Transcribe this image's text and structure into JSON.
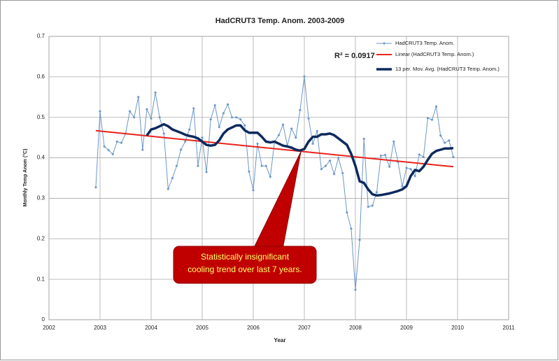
{
  "chart_data": {
    "type": "line",
    "title": "HadCRUT3 Temp. Anom. 2003-2009",
    "xlabel": "Year",
    "ylabel": "Monthly Temp Anom (°C)",
    "xlim": [
      2002,
      2011
    ],
    "xticks": [
      2002,
      2003,
      2004,
      2005,
      2006,
      2007,
      2008,
      2009,
      2010,
      2011
    ],
    "ylim": [
      0,
      0.7
    ],
    "yticks": [
      0,
      0.1,
      0.2,
      0.3,
      0.4,
      0.5,
      0.6,
      0.7
    ],
    "grid": true,
    "legend": "upper right",
    "x": [
      2002.917,
      2003.0,
      2003.083,
      2003.167,
      2003.25,
      2003.333,
      2003.417,
      2003.5,
      2003.583,
      2003.667,
      2003.75,
      2003.833,
      2003.917,
      2004.0,
      2004.083,
      2004.167,
      2004.25,
      2004.333,
      2004.417,
      2004.5,
      2004.583,
      2004.667,
      2004.75,
      2004.833,
      2004.917,
      2005.0,
      2005.083,
      2005.167,
      2005.25,
      2005.333,
      2005.417,
      2005.5,
      2005.583,
      2005.667,
      2005.75,
      2005.833,
      2005.917,
      2006.0,
      2006.083,
      2006.167,
      2006.25,
      2006.333,
      2006.417,
      2006.5,
      2006.583,
      2006.667,
      2006.75,
      2006.833,
      2006.917,
      2007.0,
      2007.083,
      2007.167,
      2007.25,
      2007.333,
      2007.417,
      2007.5,
      2007.583,
      2007.667,
      2007.75,
      2007.833,
      2007.917,
      2008.0,
      2008.083,
      2008.167,
      2008.25,
      2008.333,
      2008.417,
      2008.5,
      2008.583,
      2008.667,
      2008.75,
      2008.833,
      2008.917,
      2009.0,
      2009.083,
      2009.167,
      2009.25,
      2009.333,
      2009.417,
      2009.5,
      2009.583,
      2009.667,
      2009.75,
      2009.833,
      2009.917
    ],
    "series": [
      {
        "name": "HadCRUT3 Temp. Anom.",
        "color": "#6c97c8",
        "marker": true,
        "width": 1,
        "values": [
          0.327,
          0.515,
          0.428,
          0.419,
          0.409,
          0.44,
          0.437,
          0.46,
          0.515,
          0.5,
          0.55,
          0.42,
          0.52,
          0.497,
          0.561,
          0.5,
          0.46,
          0.323,
          0.35,
          0.38,
          0.42,
          0.44,
          0.47,
          0.522,
          0.38,
          0.45,
          0.365,
          0.495,
          0.53,
          0.476,
          0.51,
          0.532,
          0.5,
          0.5,
          0.495,
          0.48,
          0.366,
          0.32,
          0.435,
          0.38,
          0.38,
          0.353,
          0.44,
          0.456,
          0.482,
          0.43,
          0.472,
          0.45,
          0.518,
          0.601,
          0.497,
          0.435,
          0.466,
          0.372,
          0.38,
          0.393,
          0.36,
          0.4,
          0.362,
          0.265,
          0.225,
          0.074,
          0.197,
          0.447,
          0.279,
          0.282,
          0.315,
          0.405,
          0.407,
          0.378,
          0.44,
          0.39,
          0.33,
          0.375,
          0.372,
          0.355,
          0.408,
          0.402,
          0.498,
          0.494,
          0.527,
          0.455,
          0.437,
          0.443,
          0.402
        ]
      },
      {
        "name": "Linear (HadCRUT3 Temp. Anom.)",
        "color": "#e8231c",
        "marker": false,
        "width": 2,
        "x": [
          2002.917,
          2009.917
        ],
        "values": [
          0.467,
          0.378
        ]
      },
      {
        "name": "13 per. Mov. Avg. (HadCRUT3 Temp. Anom.)",
        "color": "#0d2a5e",
        "marker": false,
        "width": 3.5,
        "values": [
          null,
          null,
          null,
          null,
          null,
          null,
          null,
          null,
          null,
          null,
          null,
          null,
          0.455,
          0.47,
          0.473,
          0.478,
          0.483,
          0.478,
          0.47,
          0.466,
          0.462,
          0.457,
          0.454,
          0.452,
          0.448,
          0.44,
          0.432,
          0.43,
          0.432,
          0.443,
          0.46,
          0.47,
          0.475,
          0.48,
          0.48,
          0.468,
          0.462,
          0.462,
          0.462,
          0.452,
          0.44,
          0.438,
          0.44,
          0.435,
          0.43,
          0.428,
          0.425,
          0.42,
          0.418,
          0.422,
          0.44,
          0.452,
          0.452,
          0.458,
          0.458,
          0.46,
          0.456,
          0.448,
          0.44,
          0.432,
          0.41,
          0.38,
          0.342,
          0.338,
          0.322,
          0.31,
          0.307,
          0.308,
          0.31,
          0.312,
          0.315,
          0.318,
          0.322,
          0.33,
          0.355,
          0.37,
          0.367,
          0.378,
          0.395,
          0.41,
          0.417,
          0.42,
          0.423,
          0.423,
          0.424
        ]
      }
    ],
    "r_squared_label": "R² = 0.0917",
    "callout": [
      "Statistically insignificant",
      "cooling trend over last 7 years."
    ]
  }
}
